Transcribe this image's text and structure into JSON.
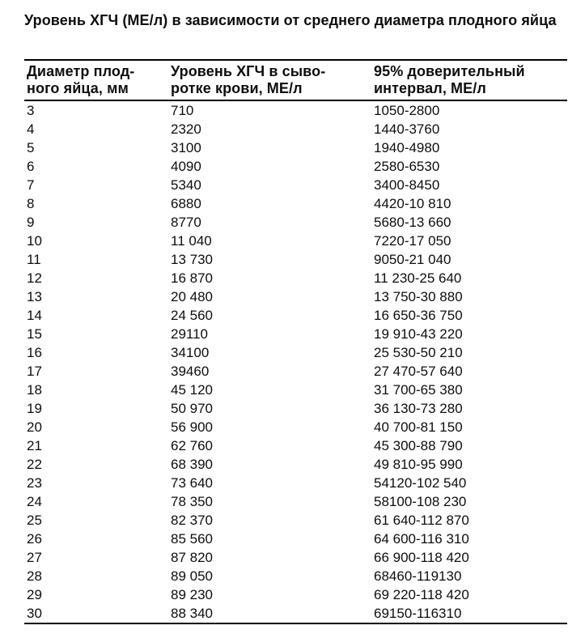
{
  "page": {
    "title": "Уровень ХГЧ (МЕ/л) в зависимости от среднего диаметра плодного яйца"
  },
  "colors": {
    "text": "#0e0e0e",
    "rule": "#000000",
    "background": "#ffffff"
  },
  "table": {
    "columns": [
      "Диаметр плод-\nного яйца, мм",
      "Уровень ХГЧ в сыво-\nротке крови, МЕ/л",
      "95% доверительный\nинтервал, МЕ/л"
    ],
    "rows": [
      [
        "3",
        "710",
        "1050-2800"
      ],
      [
        "4",
        "2320",
        "1440-3760"
      ],
      [
        "5",
        "3100",
        "1940-4980"
      ],
      [
        "6",
        "4090",
        "2580-6530"
      ],
      [
        "7",
        "5340",
        "3400-8450"
      ],
      [
        "8",
        "6880",
        "4420-10 810"
      ],
      [
        "9",
        "8770",
        "5680-13 660"
      ],
      [
        "10",
        "11 040",
        "7220-17 050"
      ],
      [
        "11",
        "13 730",
        "9050-21 040"
      ],
      [
        "12",
        "16 870",
        "11 230-25 640"
      ],
      [
        "13",
        "20 480",
        "13 750-30 880"
      ],
      [
        "14",
        "24 560",
        "16 650-36 750"
      ],
      [
        "15",
        "29110",
        "19 910-43 220"
      ],
      [
        "16",
        "34100",
        "25 530-50 210"
      ],
      [
        "17",
        "39460",
        "27 470-57 640"
      ],
      [
        "18",
        "45 120",
        "31 700-65 380"
      ],
      [
        "19",
        "50 970",
        "36 130-73 280"
      ],
      [
        "20",
        "56 900",
        "40 700-81 150"
      ],
      [
        "21",
        "62 760",
        "45 300-88 790"
      ],
      [
        "22",
        "68 390",
        "49 810-95 990"
      ],
      [
        "23",
        "73 640",
        "54120-102 540"
      ],
      [
        "24",
        "78 350",
        "58100-108 230"
      ],
      [
        "25",
        "82 370",
        "61 640-112 870"
      ],
      [
        "26",
        "85 560",
        "64 600-116 310"
      ],
      [
        "27",
        "87 820",
        "66 900-118 420"
      ],
      [
        "28",
        "89 050",
        "68460-119130"
      ],
      [
        "29",
        "89 230",
        "69 220-118 420"
      ],
      [
        "30",
        "88 340",
        "69150-116310"
      ]
    ]
  }
}
